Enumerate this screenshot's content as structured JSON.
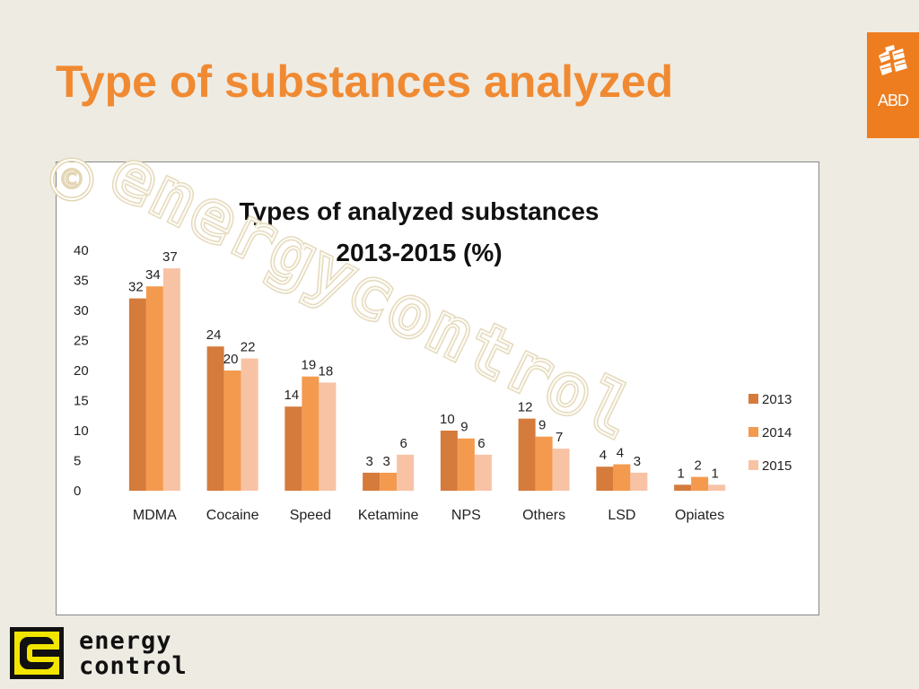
{
  "slide": {
    "title": "Type of substances analyzed",
    "badge_text": "ABD",
    "accent_color": "#f08a32",
    "badge_color": "#ee7d1f"
  },
  "footer_logo": {
    "line1": "energy",
    "line2": "control",
    "icon": "energy-control-logo-icon"
  },
  "watermark": {
    "symbol": "©",
    "text": "energycontrol"
  },
  "chart_data": {
    "type": "bar",
    "title_line1": "Types of analyzed substances",
    "title_line2": "2013-2015 (%)",
    "categories": [
      "MDMA",
      "Cocaine",
      "Speed",
      "Ketamine",
      "NPS",
      "Others",
      "LSD",
      "Opiates"
    ],
    "series": [
      {
        "name": "2013",
        "color": "#d57b3c",
        "values": [
          32,
          24,
          14,
          3,
          10,
          12,
          4,
          1
        ]
      },
      {
        "name": "2014",
        "color": "#f39a4f",
        "values": [
          34,
          20,
          19,
          3,
          9,
          9,
          4,
          2
        ]
      },
      {
        "name": "2015",
        "color": "#f8c3a5",
        "values": [
          37,
          22,
          18,
          6,
          6,
          7,
          3,
          1
        ]
      }
    ],
    "series_values_shown": [
      [
        32,
        24,
        14,
        3,
        10,
        12,
        4,
        1
      ],
      [
        34,
        20,
        19,
        3,
        9,
        9,
        4,
        2
      ],
      [
        37,
        22,
        18,
        6,
        6,
        7,
        3,
        1
      ]
    ],
    "bar_values_actual": [
      [
        32,
        24,
        14,
        3,
        10,
        12,
        4,
        1
      ],
      [
        34,
        20,
        19,
        3,
        8.7,
        9,
        4.4,
        2.3
      ],
      [
        37,
        22,
        18,
        6,
        6,
        7,
        3,
        1
      ]
    ],
    "y_ticks": [
      "0",
      "5",
      "10",
      "15",
      "20",
      "25",
      "30",
      "35",
      "40"
    ],
    "ylim": [
      0,
      40
    ],
    "grid": false,
    "legend_position": "right"
  }
}
